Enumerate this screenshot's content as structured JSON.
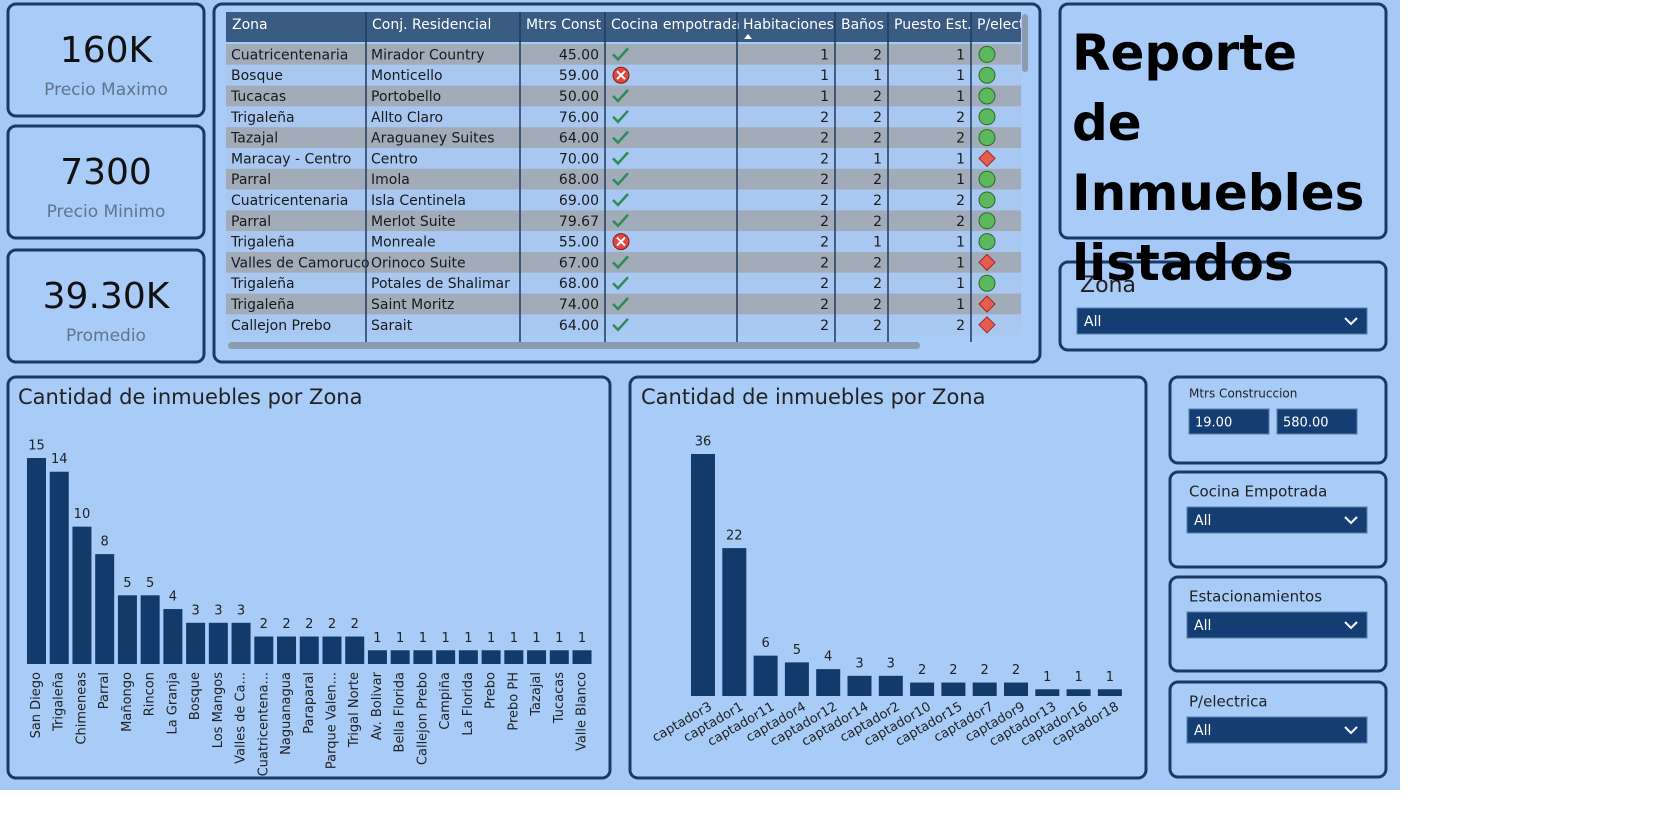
{
  "cards": [
    {
      "value": "160K",
      "label": "Precio Maximo"
    },
    {
      "value": "7300",
      "label": "Precio Minimo"
    },
    {
      "value": "39.30K",
      "label": "Promedio"
    }
  ],
  "title": "Reporte de Inmuebles listados",
  "table": {
    "columns": [
      "Zona",
      "Conj. Residencial",
      "Mtrs Const",
      "Cocina empotrada",
      "Habitaciones",
      "Baños",
      "Puesto Est.",
      "P/elect"
    ],
    "rows": [
      [
        "Cuatricentenaria",
        "Mirador Country",
        "45.00",
        true,
        1,
        2,
        1,
        true
      ],
      [
        "Bosque",
        "Monticello",
        "59.00",
        false,
        1,
        1,
        1,
        true
      ],
      [
        "Tucacas",
        "Portobello",
        "50.00",
        true,
        1,
        2,
        1,
        true
      ],
      [
        "Trigaleña",
        "Allto Claro",
        "76.00",
        true,
        2,
        2,
        2,
        true
      ],
      [
        "Tazajal",
        "Araguaney Suites",
        "64.00",
        true,
        2,
        2,
        2,
        true
      ],
      [
        "Maracay - Centro",
        "Centro",
        "70.00",
        true,
        2,
        1,
        1,
        false
      ],
      [
        "Parral",
        "Imola",
        "68.00",
        true,
        2,
        2,
        1,
        true
      ],
      [
        "Cuatricentenaria",
        "Isla Centinela",
        "69.00",
        true,
        2,
        2,
        2,
        true
      ],
      [
        "Parral",
        "Merlot Suite",
        "79.67",
        true,
        2,
        2,
        2,
        true
      ],
      [
        "Trigaleña",
        "Monreale",
        "55.00",
        false,
        2,
        1,
        1,
        true
      ],
      [
        "Valles de Camoruco",
        "Orinoco Suite",
        "67.00",
        true,
        2,
        2,
        1,
        false
      ],
      [
        "Trigaleña",
        "Potales de Shalimar",
        "68.00",
        true,
        2,
        2,
        1,
        true
      ],
      [
        "Trigaleña",
        "Saint Moritz",
        "74.00",
        true,
        2,
        2,
        1,
        false
      ],
      [
        "Callejon Prebo",
        "Sarait",
        "64.00",
        true,
        2,
        2,
        2,
        false
      ]
    ]
  },
  "slicers": [
    {
      "label": "Zona",
      "value": "All"
    },
    {
      "label": "Cocina Empotrada",
      "value": "All"
    },
    {
      "label": "Estacionamientos",
      "value": "All"
    },
    {
      "label": "P/electrica",
      "value": "All"
    }
  ],
  "range_slicer": {
    "label": "Mtrs Construccion",
    "min": "19.00",
    "max": "580.00"
  },
  "chart_data": [
    {
      "type": "bar",
      "title": "Cantidad de inmuebles por Zona",
      "color": "#123a6b",
      "categories": [
        "San Diego",
        "Trigaleña",
        "Chimeneas",
        "Parral",
        "Mañongo",
        "Rincon",
        "La Granja",
        "Bosque",
        "Los Mangos",
        "Valles de Ca...",
        "Cuatricentena...",
        "Naguanagua",
        "Paraparal",
        "Parque Valen...",
        "Trigal Norte",
        "Av. Bolivar",
        "Bella Florida",
        "Callejon Prebo",
        "Campiña",
        "La Florida",
        "Prebo",
        "Prebo PH",
        "Tazajal",
        "Tucacas",
        "Valle Blanco"
      ],
      "values": [
        15,
        14,
        10,
        8,
        5,
        5,
        4,
        3,
        3,
        3,
        2,
        2,
        2,
        2,
        2,
        1,
        1,
        1,
        1,
        1,
        1,
        1,
        1,
        1,
        1
      ]
    },
    {
      "type": "bar",
      "title": "Cantidad de inmuebles por Zona",
      "color": "#123a6b",
      "categories": [
        "captador3",
        "captador1",
        "captador11",
        "captador4",
        "captador12",
        "captador14",
        "captador2",
        "captador10",
        "captador15",
        "captador7",
        "captador9",
        "captador13",
        "captador16",
        "captador18"
      ],
      "values": [
        36,
        22,
        6,
        5,
        4,
        3,
        3,
        2,
        2,
        2,
        2,
        1,
        1,
        1
      ]
    }
  ]
}
